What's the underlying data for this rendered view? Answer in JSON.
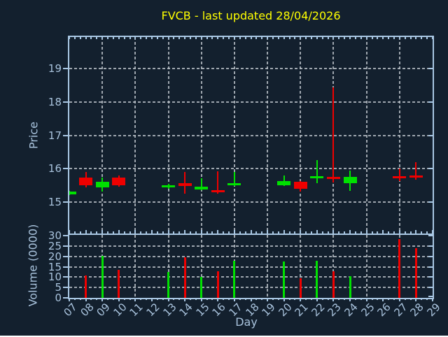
{
  "title": "FVCB - last updated 28/04/2026",
  "axis_labels": {
    "x": "Day",
    "price": "Price",
    "volume": "Volume (0000)"
  },
  "colors": {
    "background": "#13202E",
    "spine": "#A9C7E3",
    "tick_text": "#A9C3DD",
    "grid": "#B6BDC4",
    "title": "#FFFF00",
    "up": "#00E100",
    "down": "#EF0000"
  },
  "chart_data": {
    "type": "candlestick",
    "title": "FVCB - last updated 28/04/2026",
    "xlabel": "Day",
    "grid": "on",
    "price_axis": {
      "label": "Price",
      "ticks": [
        15,
        16,
        17,
        18,
        19
      ],
      "range": [
        14.05,
        19.95
      ]
    },
    "volume_axis": {
      "label": "Volume (0000)",
      "ticks": [
        0,
        5,
        10,
        15,
        20,
        25,
        30
      ],
      "range": [
        0,
        30.5
      ]
    },
    "x_axis": {
      "ticks": [
        "07",
        "08",
        "09",
        "10",
        "11",
        "12",
        "13",
        "14",
        "15",
        "16",
        "17",
        "18",
        "19",
        "20",
        "21",
        "22",
        "23",
        "24",
        "25",
        "26",
        "27",
        "28",
        "29"
      ],
      "range": [
        7,
        29
      ],
      "grid_days": [
        9,
        11,
        13,
        15,
        17,
        19,
        21,
        23,
        25,
        27
      ]
    },
    "candles": [
      {
        "day": 7,
        "open": 15.22,
        "high": 15.33,
        "low": 15.21,
        "close": 15.32,
        "volume": 0,
        "direction": "up"
      },
      {
        "day": 8,
        "open": 15.73,
        "high": 15.89,
        "low": 15.44,
        "close": 15.49,
        "volume": 11,
        "direction": "down"
      },
      {
        "day": 9,
        "open": 15.43,
        "high": 15.72,
        "low": 15.31,
        "close": 15.61,
        "volume": 20.5,
        "direction": "up"
      },
      {
        "day": 10,
        "open": 15.72,
        "high": 15.8,
        "low": 15.45,
        "close": 15.5,
        "volume": 13.5,
        "direction": "down"
      },
      {
        "day": 13,
        "open": 15.43,
        "high": 15.55,
        "low": 15.4,
        "close": 15.5,
        "volume": 12.5,
        "direction": "up"
      },
      {
        "day": 14,
        "open": 15.56,
        "high": 15.89,
        "low": 15.24,
        "close": 15.47,
        "volume": 19.5,
        "direction": "down"
      },
      {
        "day": 15,
        "open": 15.38,
        "high": 15.71,
        "low": 15.35,
        "close": 15.45,
        "volume": 10,
        "direction": "up"
      },
      {
        "day": 16,
        "open": 15.36,
        "high": 15.91,
        "low": 15.24,
        "close": 15.29,
        "volume": 13,
        "direction": "down"
      },
      {
        "day": 17,
        "open": 15.5,
        "high": 15.89,
        "low": 15.48,
        "close": 15.57,
        "volume": 18,
        "direction": "up"
      },
      {
        "day": 20,
        "open": 15.49,
        "high": 15.8,
        "low": 15.48,
        "close": 15.63,
        "volume": 17.5,
        "direction": "up"
      },
      {
        "day": 21,
        "open": 15.61,
        "high": 15.62,
        "low": 15.31,
        "close": 15.4,
        "volume": 9.5,
        "direction": "down"
      },
      {
        "day": 22,
        "open": 15.7,
        "high": 16.26,
        "low": 15.56,
        "close": 15.77,
        "volume": 18,
        "direction": "up"
      },
      {
        "day": 23,
        "open": 15.75,
        "high": 18.43,
        "low": 15.59,
        "close": 15.68,
        "volume": 13,
        "direction": "down"
      },
      {
        "day": 24,
        "open": 15.56,
        "high": 15.93,
        "low": 15.33,
        "close": 15.75,
        "volume": 10.5,
        "direction": "up"
      },
      {
        "day": 27,
        "open": 15.78,
        "high": 16.01,
        "low": 15.63,
        "close": 15.71,
        "volume": 28.5,
        "direction": "down"
      },
      {
        "day": 28,
        "open": 15.8,
        "high": 16.2,
        "low": 15.66,
        "close": 15.73,
        "volume": 24,
        "direction": "down"
      }
    ]
  }
}
